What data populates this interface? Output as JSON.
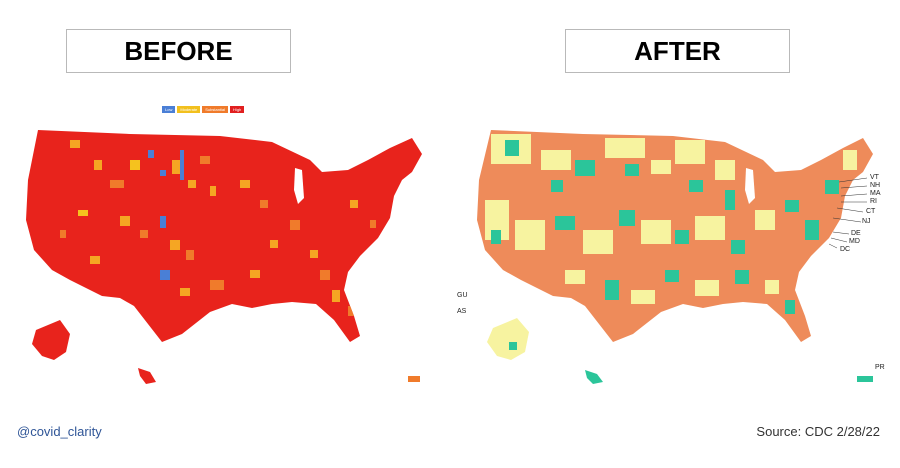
{
  "panels": {
    "before": {
      "title": "BEFORE"
    },
    "after": {
      "title": "AFTER"
    }
  },
  "legend": {
    "items": [
      {
        "label": "Low",
        "color": "#4a7fd6"
      },
      {
        "label": "Moderate",
        "color": "#f2c01e"
      },
      {
        "label": "Substantial",
        "color": "#f07b2b"
      },
      {
        "label": "High",
        "color": "#e11f1f"
      }
    ]
  },
  "after_colors": {
    "low": "#2bc59a",
    "medium": "#f7f3a0",
    "high": "#ee8b5a"
  },
  "territories": {
    "gu": "GU",
    "as": "AS",
    "pr": "PR"
  },
  "state_labels": [
    "VT",
    "NH",
    "MA",
    "RI",
    "CT",
    "NJ",
    "DE",
    "MD",
    "DC"
  ],
  "footer": {
    "handle": "@covid_clarity",
    "source": "Source: CDC  2/28/22"
  }
}
